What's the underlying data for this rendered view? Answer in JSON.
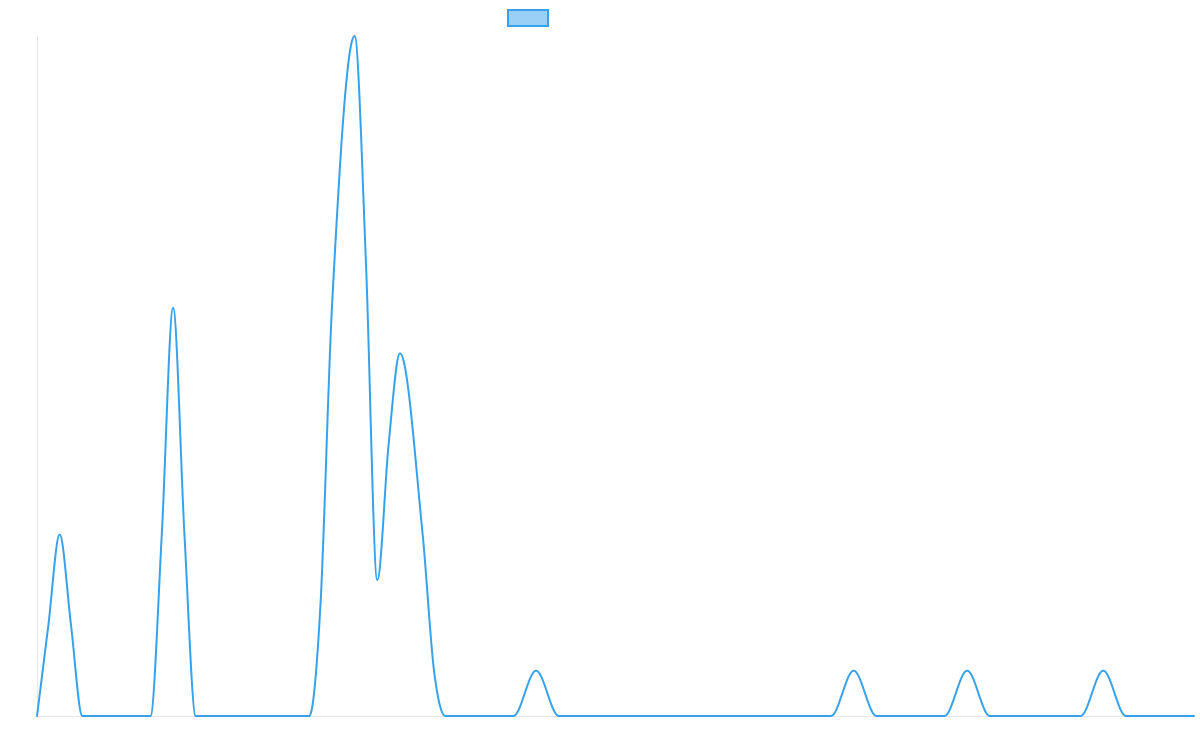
{
  "chart_data": {
    "type": "line",
    "title": "",
    "xlabel": "",
    "ylabel": "",
    "legend": {
      "position": "top-center",
      "show_text": false
    },
    "grid": false,
    "colors": {
      "line": "#36a2eb",
      "fill": "#9ad0f5",
      "axis": "#e6e6e6"
    },
    "xlim": [
      0,
      51
    ],
    "ylim": [
      0,
      30
    ],
    "series": [
      {
        "points": [
          [
            0,
            0
          ],
          [
            0.5,
            4
          ],
          [
            1,
            8
          ],
          [
            1.5,
            4
          ],
          [
            2,
            0
          ],
          [
            5,
            0
          ],
          [
            5.5,
            8
          ],
          [
            6,
            18
          ],
          [
            6.5,
            8
          ],
          [
            7,
            0
          ],
          [
            12,
            0
          ],
          [
            12.5,
            5
          ],
          [
            13,
            18
          ],
          [
            14,
            30
          ],
          [
            14.5,
            20
          ],
          [
            15,
            6
          ],
          [
            15.5,
            12
          ],
          [
            16,
            16
          ],
          [
            17,
            8
          ],
          [
            17.5,
            2
          ],
          [
            18,
            0
          ],
          [
            21,
            0
          ],
          [
            22,
            2
          ],
          [
            23,
            0
          ],
          [
            35,
            0
          ],
          [
            36,
            2
          ],
          [
            37,
            0
          ],
          [
            40,
            0
          ],
          [
            41,
            2
          ],
          [
            42,
            0
          ],
          [
            46,
            0
          ],
          [
            47,
            2
          ],
          [
            48,
            0
          ],
          [
            51,
            0
          ]
        ]
      }
    ]
  }
}
